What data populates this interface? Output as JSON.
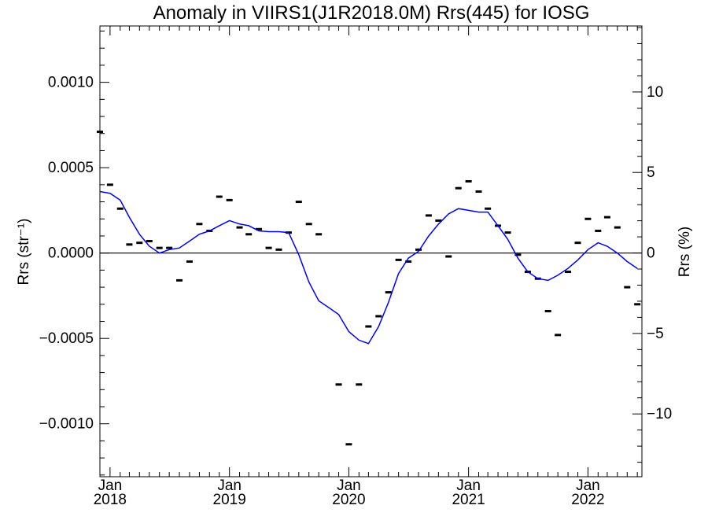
{
  "chart_data": {
    "type": "scatter",
    "title": "Anomaly in VIIRS1(J1R2018.0M) Rrs(445) for IOSG",
    "ylabel_left": "Rrs (str⁻¹)",
    "ylabel_right": "Rrs (%)",
    "xlabel": "",
    "xlim": [
      "2017-12-01",
      "2022-06-15"
    ],
    "ylim_left": [
      -0.00131,
      0.00133
    ],
    "ylim_right": [
      -13.9,
      14.1
    ],
    "x_ticks": [
      {
        "month": "Jan",
        "year": "2018",
        "date": "2018-01-01"
      },
      {
        "month": "Jan",
        "year": "2019",
        "date": "2019-01-01"
      },
      {
        "month": "Jan",
        "year": "2020",
        "date": "2020-01-01"
      },
      {
        "month": "Jan",
        "year": "2021",
        "date": "2021-01-01"
      },
      {
        "month": "Jan",
        "year": "2022",
        "date": "2022-01-01"
      }
    ],
    "y_ticks_left": [
      {
        "value": 0.001,
        "label": "0.0010"
      },
      {
        "value": 0.0005,
        "label": "0.0005"
      },
      {
        "value": 0,
        "label": "0.0000"
      },
      {
        "value": -0.0005,
        "label": "−0.0005"
      },
      {
        "value": -0.001,
        "label": "−0.0010"
      }
    ],
    "y_ticks_right": [
      {
        "value": 10,
        "label": "10"
      },
      {
        "value": 5,
        "label": "5"
      },
      {
        "value": 0,
        "label": "0"
      },
      {
        "value": -5,
        "label": "−5"
      },
      {
        "value": -10,
        "label": "−10"
      }
    ],
    "zero_line": 0,
    "series": [
      {
        "kind": "points",
        "color": "#000000",
        "points": [
          {
            "x": "2017-12-01",
            "y": 0.00071
          },
          {
            "x": "2018-01-01",
            "y": 0.0004
          },
          {
            "x": "2018-02-01",
            "y": 0.00026
          },
          {
            "x": "2018-03-01",
            "y": 5e-05
          },
          {
            "x": "2018-04-01",
            "y": 6e-05
          },
          {
            "x": "2018-05-01",
            "y": 7e-05
          },
          {
            "x": "2018-06-01",
            "y": 3e-05
          },
          {
            "x": "2018-07-01",
            "y": 3e-05
          },
          {
            "x": "2018-08-01",
            "y": -0.00016
          },
          {
            "x": "2018-09-01",
            "y": -5e-05
          },
          {
            "x": "2018-10-01",
            "y": 0.00017
          },
          {
            "x": "2018-11-01",
            "y": 0.00013
          },
          {
            "x": "2018-12-01",
            "y": 0.00033
          },
          {
            "x": "2019-01-01",
            "y": 0.00031
          },
          {
            "x": "2019-02-01",
            "y": 0.00015
          },
          {
            "x": "2019-03-01",
            "y": 0.00011
          },
          {
            "x": "2019-04-01",
            "y": 0.00014
          },
          {
            "x": "2019-05-01",
            "y": 3e-05
          },
          {
            "x": "2019-06-01",
            "y": 2e-05
          },
          {
            "x": "2019-07-01",
            "y": 0.00012
          },
          {
            "x": "2019-08-01",
            "y": 0.0003
          },
          {
            "x": "2019-09-01",
            "y": 0.00017
          },
          {
            "x": "2019-10-01",
            "y": 0.00011
          },
          {
            "x": "2019-12-01",
            "y": -0.00077
          },
          {
            "x": "2020-01-01",
            "y": -0.00112
          },
          {
            "x": "2020-02-01",
            "y": -0.00077
          },
          {
            "x": "2020-03-01",
            "y": -0.00043
          },
          {
            "x": "2020-04-01",
            "y": -0.00037
          },
          {
            "x": "2020-05-01",
            "y": -0.00023
          },
          {
            "x": "2020-06-01",
            "y": -4e-05
          },
          {
            "x": "2020-07-01",
            "y": -5e-05
          },
          {
            "x": "2020-08-01",
            "y": 2e-05
          },
          {
            "x": "2020-09-01",
            "y": 0.00022
          },
          {
            "x": "2020-10-01",
            "y": 0.00019
          },
          {
            "x": "2020-11-01",
            "y": -2e-05
          },
          {
            "x": "2020-12-01",
            "y": 0.00038
          },
          {
            "x": "2021-01-01",
            "y": 0.00042
          },
          {
            "x": "2021-02-01",
            "y": 0.00036
          },
          {
            "x": "2021-03-01",
            "y": 0.00026
          },
          {
            "x": "2021-04-01",
            "y": 0.00016
          },
          {
            "x": "2021-05-01",
            "y": 0.00012
          },
          {
            "x": "2021-06-01",
            "y": -1e-05
          },
          {
            "x": "2021-07-01",
            "y": -0.00011
          },
          {
            "x": "2021-08-01",
            "y": -0.00015
          },
          {
            "x": "2021-09-01",
            "y": -0.00034
          },
          {
            "x": "2021-10-01",
            "y": -0.00048
          },
          {
            "x": "2021-11-01",
            "y": -0.00011
          },
          {
            "x": "2021-12-01",
            "y": 6e-05
          },
          {
            "x": "2022-01-01",
            "y": 0.0002
          },
          {
            "x": "2022-02-01",
            "y": 0.00013
          },
          {
            "x": "2022-03-01",
            "y": 0.00021
          },
          {
            "x": "2022-04-01",
            "y": 0.00015
          },
          {
            "x": "2022-05-01",
            "y": -0.0002
          },
          {
            "x": "2022-06-01",
            "y": -0.0003
          }
        ]
      },
      {
        "kind": "line",
        "color": "#0000ff",
        "points": [
          {
            "x": "2017-12-01",
            "y": 0.00036
          },
          {
            "x": "2018-01-01",
            "y": 0.00035
          },
          {
            "x": "2018-02-01",
            "y": 0.00031
          },
          {
            "x": "2018-03-01",
            "y": 0.00021
          },
          {
            "x": "2018-04-01",
            "y": 0.00011
          },
          {
            "x": "2018-05-01",
            "y": 4e-05
          },
          {
            "x": "2018-06-01",
            "y": 0.0
          },
          {
            "x": "2018-07-01",
            "y": 2e-05
          },
          {
            "x": "2018-08-01",
            "y": 3e-05
          },
          {
            "x": "2018-09-01",
            "y": 7e-05
          },
          {
            "x": "2018-10-01",
            "y": 0.00011
          },
          {
            "x": "2018-11-01",
            "y": 0.00013
          },
          {
            "x": "2018-12-01",
            "y": 0.00016
          },
          {
            "x": "2019-01-01",
            "y": 0.00019
          },
          {
            "x": "2019-02-01",
            "y": 0.00017
          },
          {
            "x": "2019-03-01",
            "y": 0.00016
          },
          {
            "x": "2019-04-01",
            "y": 0.00013
          },
          {
            "x": "2019-05-01",
            "y": 0.000125
          },
          {
            "x": "2019-06-01",
            "y": 0.000125
          },
          {
            "x": "2019-07-01",
            "y": 0.00012
          },
          {
            "x": "2019-08-01",
            "y": -1e-05
          },
          {
            "x": "2019-09-01",
            "y": -0.00017
          },
          {
            "x": "2019-10-01",
            "y": -0.00028
          },
          {
            "x": "2019-11-01",
            "y": -0.00032
          },
          {
            "x": "2019-12-01",
            "y": -0.00036
          },
          {
            "x": "2020-01-01",
            "y": -0.00046
          },
          {
            "x": "2020-02-01",
            "y": -0.00051
          },
          {
            "x": "2020-03-01",
            "y": -0.00053
          },
          {
            "x": "2020-04-01",
            "y": -0.00043
          },
          {
            "x": "2020-05-01",
            "y": -0.00029
          },
          {
            "x": "2020-06-01",
            "y": -0.00012
          },
          {
            "x": "2020-07-01",
            "y": -3e-05
          },
          {
            "x": "2020-08-01",
            "y": 1e-05
          },
          {
            "x": "2020-09-01",
            "y": 0.0001
          },
          {
            "x": "2020-10-01",
            "y": 0.00017
          },
          {
            "x": "2020-11-01",
            "y": 0.00023
          },
          {
            "x": "2020-12-01",
            "y": 0.00026
          },
          {
            "x": "2021-01-01",
            "y": 0.00025
          },
          {
            "x": "2021-02-01",
            "y": 0.00024
          },
          {
            "x": "2021-03-01",
            "y": 0.00024
          },
          {
            "x": "2021-04-01",
            "y": 0.00016
          },
          {
            "x": "2021-05-01",
            "y": 8e-05
          },
          {
            "x": "2021-06-01",
            "y": -3e-05
          },
          {
            "x": "2021-07-01",
            "y": -0.00011
          },
          {
            "x": "2021-08-01",
            "y": -0.00015
          },
          {
            "x": "2021-09-01",
            "y": -0.00016
          },
          {
            "x": "2021-10-01",
            "y": -0.00013
          },
          {
            "x": "2021-11-01",
            "y": -9e-05
          },
          {
            "x": "2021-12-01",
            "y": -4e-05
          },
          {
            "x": "2022-01-01",
            "y": 2e-05
          },
          {
            "x": "2022-02-01",
            "y": 6e-05
          },
          {
            "x": "2022-03-01",
            "y": 4e-05
          },
          {
            "x": "2022-04-01",
            "y": 0.0
          },
          {
            "x": "2022-05-01",
            "y": -5e-05
          },
          {
            "x": "2022-06-01",
            "y": -9e-05
          }
        ]
      }
    ]
  }
}
